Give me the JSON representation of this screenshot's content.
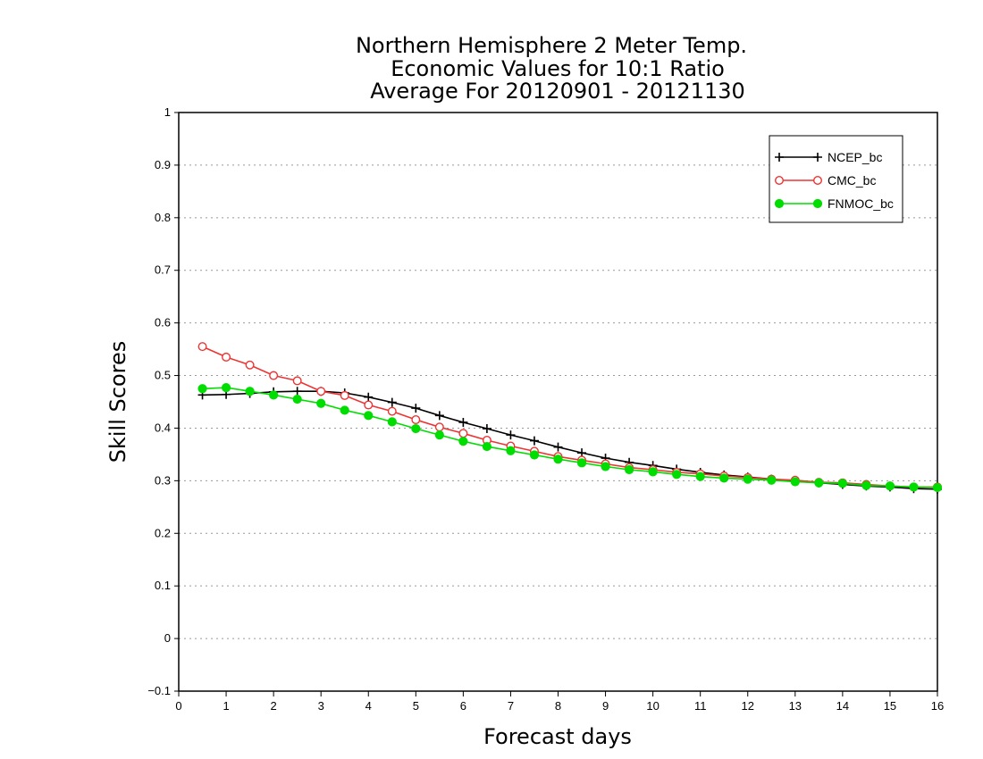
{
  "chart_data": {
    "type": "line",
    "title": [
      "Northern Hemisphere 2 Meter Temp.",
      "Economic Values for 10:1 Ratio",
      "Average For 20120901 - 20121130"
    ],
    "xlabel": "Forecast days",
    "ylabel": "Skill Scores",
    "xlim": [
      0,
      16
    ],
    "ylim": [
      -0.1,
      1
    ],
    "xticks": [
      "0",
      "1",
      "2",
      "3",
      "4",
      "5",
      "6",
      "7",
      "8",
      "9",
      "10",
      "11",
      "12",
      "13",
      "14",
      "15",
      "16"
    ],
    "yticks": [
      "−0.1",
      "0",
      "0.1",
      "0.2",
      "0.3",
      "0.4",
      "0.5",
      "0.6",
      "0.7",
      "0.8",
      "0.9",
      "1"
    ],
    "grid": true,
    "legend_position": "top-right",
    "x": [
      0.5,
      1,
      1.5,
      2,
      2.5,
      3,
      3.5,
      4,
      4.5,
      5,
      5.5,
      6,
      6.5,
      7,
      7.5,
      8,
      8.5,
      9,
      9.5,
      10,
      10.5,
      11,
      11.5,
      12,
      12.5,
      13,
      13.5,
      14,
      14.5,
      15,
      15.5,
      16
    ],
    "series": [
      {
        "name": "NCEP_bc",
        "color": "#000000",
        "marker": "plus",
        "values": [
          0.463,
          0.464,
          0.466,
          0.469,
          0.47,
          0.47,
          0.467,
          0.459,
          0.449,
          0.438,
          0.424,
          0.411,
          0.399,
          0.387,
          0.376,
          0.364,
          0.353,
          0.343,
          0.335,
          0.329,
          0.322,
          0.316,
          0.311,
          0.307,
          0.303,
          0.299,
          0.296,
          0.293,
          0.29,
          0.288,
          0.285,
          0.284
        ]
      },
      {
        "name": "CMC_bc",
        "color": "#ee3333",
        "marker": "open-circle",
        "values": [
          0.555,
          0.535,
          0.52,
          0.5,
          0.49,
          0.47,
          0.462,
          0.444,
          0.432,
          0.416,
          0.402,
          0.39,
          0.377,
          0.366,
          0.356,
          0.346,
          0.339,
          0.332,
          0.325,
          0.321,
          0.316,
          0.313,
          0.309,
          0.306,
          0.303,
          0.301,
          0.297,
          0.296,
          0.293,
          0.29,
          0.288,
          0.288
        ]
      },
      {
        "name": "FNMOC_bc",
        "color": "#00dd00",
        "marker": "filled-circle",
        "values": [
          0.475,
          0.477,
          0.47,
          0.463,
          0.455,
          0.447,
          0.434,
          0.424,
          0.412,
          0.399,
          0.387,
          0.375,
          0.365,
          0.357,
          0.349,
          0.341,
          0.334,
          0.327,
          0.321,
          0.317,
          0.312,
          0.308,
          0.305,
          0.303,
          0.301,
          0.298,
          0.296,
          0.295,
          0.291,
          0.29,
          0.288,
          0.287
        ]
      }
    ]
  }
}
